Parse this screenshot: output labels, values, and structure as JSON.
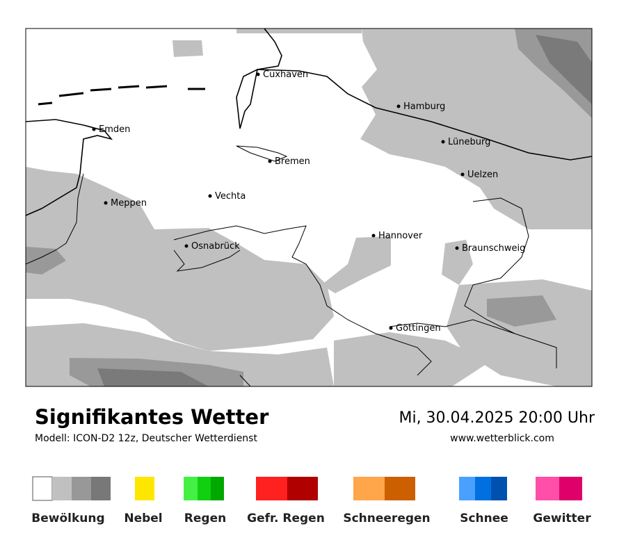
{
  "header": {
    "title": "Signifikantes Wetter",
    "model": "Modell: ICON-D2 12z, Deutscher Wetterdienst",
    "datetime": "Mi, 30.04.2025 20:00 Uhr",
    "website": "www.wetterblick.com"
  },
  "map": {
    "cities": [
      "Cuxhaven",
      "Hamburg",
      "Emden",
      "Lüneburg",
      "Bremen",
      "Uelzen",
      "Vechta",
      "Meppen",
      "Hannover",
      "Osnabrück",
      "Braunschweig",
      "Göttingen"
    ]
  },
  "legend": {
    "items": [
      "Bewölkung",
      "Nebel",
      "Regen",
      "Gefr. Regen",
      "Schneeregen",
      "Schnee",
      "Gewitter"
    ]
  }
}
